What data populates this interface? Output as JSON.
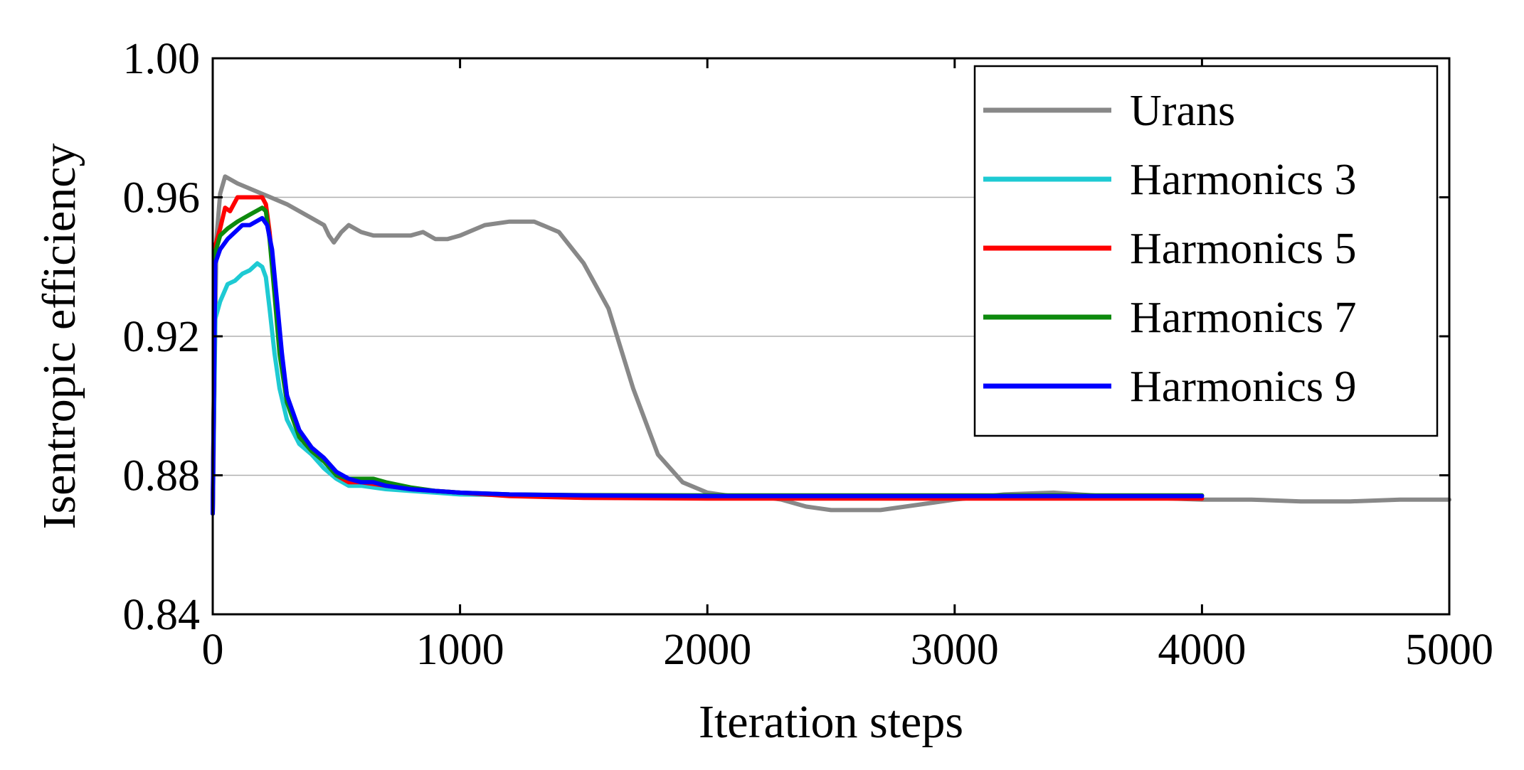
{
  "chart_data": {
    "type": "line",
    "title": "",
    "xlabel": "Iteration steps",
    "ylabel": "Isentropic efficiency",
    "xlim": [
      0,
      5000
    ],
    "ylim": [
      0.84,
      1.0
    ],
    "xticks": [
      0,
      1000,
      2000,
      3000,
      4000,
      5000
    ],
    "xtick_labels": [
      "0",
      "1000",
      "2000",
      "3000",
      "4000",
      "5000"
    ],
    "yticks": [
      0.84,
      0.88,
      0.92,
      0.96,
      1.0
    ],
    "ytick_labels": [
      "0.84",
      "0.88",
      "0.92",
      "0.96",
      "1.00"
    ],
    "grid": "horizontal",
    "legend_position": "top-right",
    "series": [
      {
        "name": "Urans",
        "color": "#888888",
        "points": [
          [
            0,
            0.869
          ],
          [
            15,
            0.948
          ],
          [
            30,
            0.961
          ],
          [
            50,
            0.966
          ],
          [
            100,
            0.964
          ],
          [
            200,
            0.961
          ],
          [
            300,
            0.958
          ],
          [
            400,
            0.954
          ],
          [
            450,
            0.952
          ],
          [
            470,
            0.949
          ],
          [
            490,
            0.947
          ],
          [
            520,
            0.95
          ],
          [
            550,
            0.952
          ],
          [
            600,
            0.95
          ],
          [
            650,
            0.949
          ],
          [
            700,
            0.949
          ],
          [
            800,
            0.949
          ],
          [
            850,
            0.95
          ],
          [
            900,
            0.948
          ],
          [
            950,
            0.948
          ],
          [
            1000,
            0.949
          ],
          [
            1100,
            0.952
          ],
          [
            1200,
            0.953
          ],
          [
            1300,
            0.953
          ],
          [
            1400,
            0.95
          ],
          [
            1500,
            0.941
          ],
          [
            1600,
            0.928
          ],
          [
            1700,
            0.905
          ],
          [
            1800,
            0.886
          ],
          [
            1900,
            0.878
          ],
          [
            2000,
            0.875
          ],
          [
            2100,
            0.874
          ],
          [
            2200,
            0.874
          ],
          [
            2300,
            0.873
          ],
          [
            2400,
            0.871
          ],
          [
            2500,
            0.87
          ],
          [
            2600,
            0.87
          ],
          [
            2700,
            0.87
          ],
          [
            2800,
            0.871
          ],
          [
            2900,
            0.872
          ],
          [
            3000,
            0.873
          ],
          [
            3200,
            0.8745
          ],
          [
            3400,
            0.875
          ],
          [
            3600,
            0.874
          ],
          [
            3800,
            0.8735
          ],
          [
            4000,
            0.873
          ],
          [
            4200,
            0.873
          ],
          [
            4400,
            0.8725
          ],
          [
            4600,
            0.8725
          ],
          [
            4800,
            0.873
          ],
          [
            5000,
            0.873
          ]
        ]
      },
      {
        "name": "Harmonics 3",
        "color": "#1ecad3",
        "points": [
          [
            0,
            0.869
          ],
          [
            10,
            0.925
          ],
          [
            30,
            0.93
          ],
          [
            60,
            0.935
          ],
          [
            90,
            0.936
          ],
          [
            120,
            0.938
          ],
          [
            150,
            0.939
          ],
          [
            180,
            0.941
          ],
          [
            200,
            0.94
          ],
          [
            215,
            0.937
          ],
          [
            230,
            0.928
          ],
          [
            250,
            0.915
          ],
          [
            270,
            0.905
          ],
          [
            300,
            0.896
          ],
          [
            350,
            0.889
          ],
          [
            400,
            0.886
          ],
          [
            450,
            0.882
          ],
          [
            500,
            0.879
          ],
          [
            550,
            0.877
          ],
          [
            600,
            0.877
          ],
          [
            650,
            0.8765
          ],
          [
            700,
            0.876
          ],
          [
            800,
            0.8755
          ],
          [
            900,
            0.875
          ],
          [
            1000,
            0.8745
          ],
          [
            1500,
            0.874
          ],
          [
            2000,
            0.874
          ],
          [
            3000,
            0.874
          ],
          [
            4000,
            0.874
          ]
        ]
      },
      {
        "name": "Harmonics 5",
        "color": "#ff0000",
        "points": [
          [
            0,
            0.869
          ],
          [
            10,
            0.946
          ],
          [
            30,
            0.951
          ],
          [
            50,
            0.957
          ],
          [
            70,
            0.956
          ],
          [
            100,
            0.96
          ],
          [
            150,
            0.96
          ],
          [
            200,
            0.96
          ],
          [
            215,
            0.958
          ],
          [
            230,
            0.95
          ],
          [
            250,
            0.935
          ],
          [
            270,
            0.918
          ],
          [
            300,
            0.903
          ],
          [
            350,
            0.891
          ],
          [
            400,
            0.887
          ],
          [
            450,
            0.884
          ],
          [
            500,
            0.88
          ],
          [
            550,
            0.878
          ],
          [
            600,
            0.878
          ],
          [
            650,
            0.8775
          ],
          [
            700,
            0.877
          ],
          [
            800,
            0.876
          ],
          [
            900,
            0.8755
          ],
          [
            1000,
            0.875
          ],
          [
            1200,
            0.874
          ],
          [
            1500,
            0.8735
          ],
          [
            2000,
            0.8733
          ],
          [
            3000,
            0.8733
          ],
          [
            4000,
            0.8733
          ]
        ]
      },
      {
        "name": "Harmonics 7",
        "color": "#0d8a0d",
        "points": [
          [
            0,
            0.869
          ],
          [
            10,
            0.944
          ],
          [
            30,
            0.949
          ],
          [
            60,
            0.951
          ],
          [
            100,
            0.953
          ],
          [
            150,
            0.955
          ],
          [
            200,
            0.957
          ],
          [
            215,
            0.956
          ],
          [
            230,
            0.948
          ],
          [
            250,
            0.932
          ],
          [
            270,
            0.915
          ],
          [
            300,
            0.901
          ],
          [
            350,
            0.891
          ],
          [
            400,
            0.887
          ],
          [
            450,
            0.884
          ],
          [
            500,
            0.88
          ],
          [
            550,
            0.879
          ],
          [
            600,
            0.879
          ],
          [
            650,
            0.879
          ],
          [
            700,
            0.878
          ],
          [
            800,
            0.8765
          ],
          [
            900,
            0.8755
          ],
          [
            1000,
            0.875
          ],
          [
            1200,
            0.8745
          ],
          [
            1500,
            0.8743
          ],
          [
            2000,
            0.8742
          ],
          [
            3000,
            0.8742
          ],
          [
            4000,
            0.8742
          ]
        ]
      },
      {
        "name": "Harmonics 9",
        "color": "#0000ff",
        "points": [
          [
            0,
            0.869
          ],
          [
            10,
            0.941
          ],
          [
            30,
            0.945
          ],
          [
            60,
            0.948
          ],
          [
            90,
            0.95
          ],
          [
            120,
            0.952
          ],
          [
            150,
            0.952
          ],
          [
            200,
            0.954
          ],
          [
            220,
            0.952
          ],
          [
            240,
            0.945
          ],
          [
            260,
            0.93
          ],
          [
            280,
            0.915
          ],
          [
            300,
            0.903
          ],
          [
            350,
            0.893
          ],
          [
            400,
            0.888
          ],
          [
            450,
            0.885
          ],
          [
            500,
            0.881
          ],
          [
            550,
            0.879
          ],
          [
            600,
            0.878
          ],
          [
            650,
            0.878
          ],
          [
            700,
            0.877
          ],
          [
            800,
            0.876
          ],
          [
            900,
            0.8755
          ],
          [
            1000,
            0.875
          ],
          [
            1200,
            0.8745
          ],
          [
            1500,
            0.8742
          ],
          [
            2000,
            0.874
          ],
          [
            3000,
            0.874
          ],
          [
            4000,
            0.874
          ]
        ]
      }
    ]
  }
}
